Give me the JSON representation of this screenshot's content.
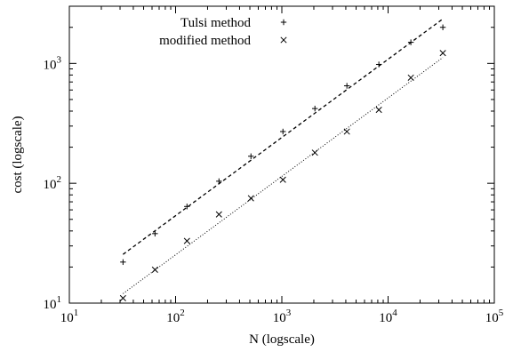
{
  "chart_data": {
    "type": "scatter",
    "xlabel": "N (logscale)",
    "ylabel": "cost (logscale)",
    "x_scale": "log",
    "y_scale": "log",
    "xlim": [
      10,
      100000
    ],
    "ylim": [
      10,
      3000
    ],
    "x_ticks": [
      {
        "value": 10,
        "base": "10",
        "exp": "1"
      },
      {
        "value": 100,
        "base": "10",
        "exp": "2"
      },
      {
        "value": 1000,
        "base": "10",
        "exp": "3"
      },
      {
        "value": 10000,
        "base": "10",
        "exp": "4"
      },
      {
        "value": 100000,
        "base": "10",
        "exp": "5"
      }
    ],
    "y_ticks": [
      {
        "value": 10,
        "base": "10",
        "exp": "1"
      },
      {
        "value": 100,
        "base": "10",
        "exp": "2"
      },
      {
        "value": 1000,
        "base": "10",
        "exp": "3"
      }
    ],
    "grid": false,
    "legend_position": "top-left",
    "series": [
      {
        "name": "Tulsi method",
        "marker": "plus",
        "color": "#000000",
        "x": [
          32,
          64,
          128,
          256,
          512,
          1024,
          2048,
          4096,
          8192,
          16384,
          32768
        ],
        "y": [
          22,
          38,
          64,
          104,
          168,
          270,
          420,
          650,
          980,
          1500,
          2000
        ]
      },
      {
        "name": "modified method",
        "marker": "cross",
        "color": "#000000",
        "x": [
          32,
          64,
          128,
          256,
          512,
          1024,
          2048,
          4096,
          8192,
          16384,
          32768
        ],
        "y": [
          11,
          19,
          33,
          55,
          75,
          107,
          180,
          270,
          410,
          760,
          1220
        ]
      }
    ],
    "fit_lines": [
      {
        "series": "Tulsi method",
        "style": "dashed",
        "x": [
          32,
          32768
        ],
        "y": [
          25.5,
          2350
        ]
      },
      {
        "series": "modified method",
        "style": "dotted",
        "x": [
          32,
          32768
        ],
        "y": [
          12,
          1120
        ]
      }
    ]
  }
}
